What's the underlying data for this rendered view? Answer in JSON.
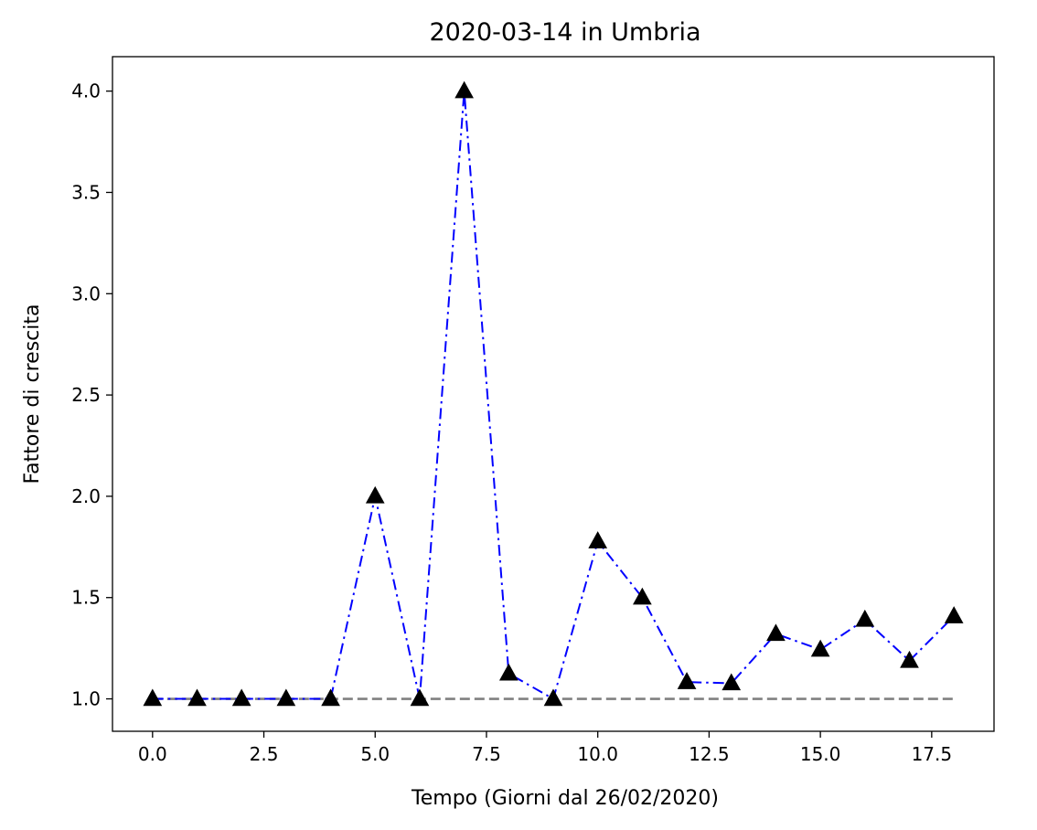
{
  "chart_data": {
    "type": "line",
    "title": "2020-03-14 in Umbria",
    "xlabel": "Tempo (Giorni dal 26/02/2020)",
    "ylabel": "Fattore di crescita",
    "xlim": [
      -0.9,
      18.9
    ],
    "ylim": [
      0.84,
      4.17
    ],
    "x_ticks": [
      0,
      2.5,
      5,
      7.5,
      10,
      12.5,
      15,
      17.5
    ],
    "x_tick_labels": [
      "0.0",
      "2.5",
      "5.0",
      "7.5",
      "10.0",
      "12.5",
      "15.0",
      "17.5"
    ],
    "y_ticks": [
      1.0,
      1.5,
      2.0,
      2.5,
      3.0,
      3.5,
      4.0
    ],
    "y_tick_labels": [
      "1.0",
      "1.5",
      "2.0",
      "2.5",
      "3.0",
      "3.5",
      "4.0"
    ],
    "grid": false,
    "series": [
      {
        "style": "dashdot",
        "color": "#0000ff",
        "marker": "triangle",
        "marker_color": "#000000",
        "x": [
          0,
          1,
          2,
          3,
          4,
          5,
          6,
          7,
          8,
          9,
          10,
          11,
          12,
          13,
          14,
          15,
          16,
          17,
          18
        ],
        "values": [
          1.0,
          1.0,
          1.0,
          1.0,
          1.0,
          2.0,
          1.0,
          4.0,
          1.125,
          1.0,
          1.778,
          1.5,
          1.083,
          1.077,
          1.321,
          1.243,
          1.391,
          1.188,
          1.408
        ]
      },
      {
        "style": "dashed",
        "color": "#808080",
        "x": [
          0,
          18
        ],
        "values": [
          1.0,
          1.0
        ]
      }
    ]
  }
}
